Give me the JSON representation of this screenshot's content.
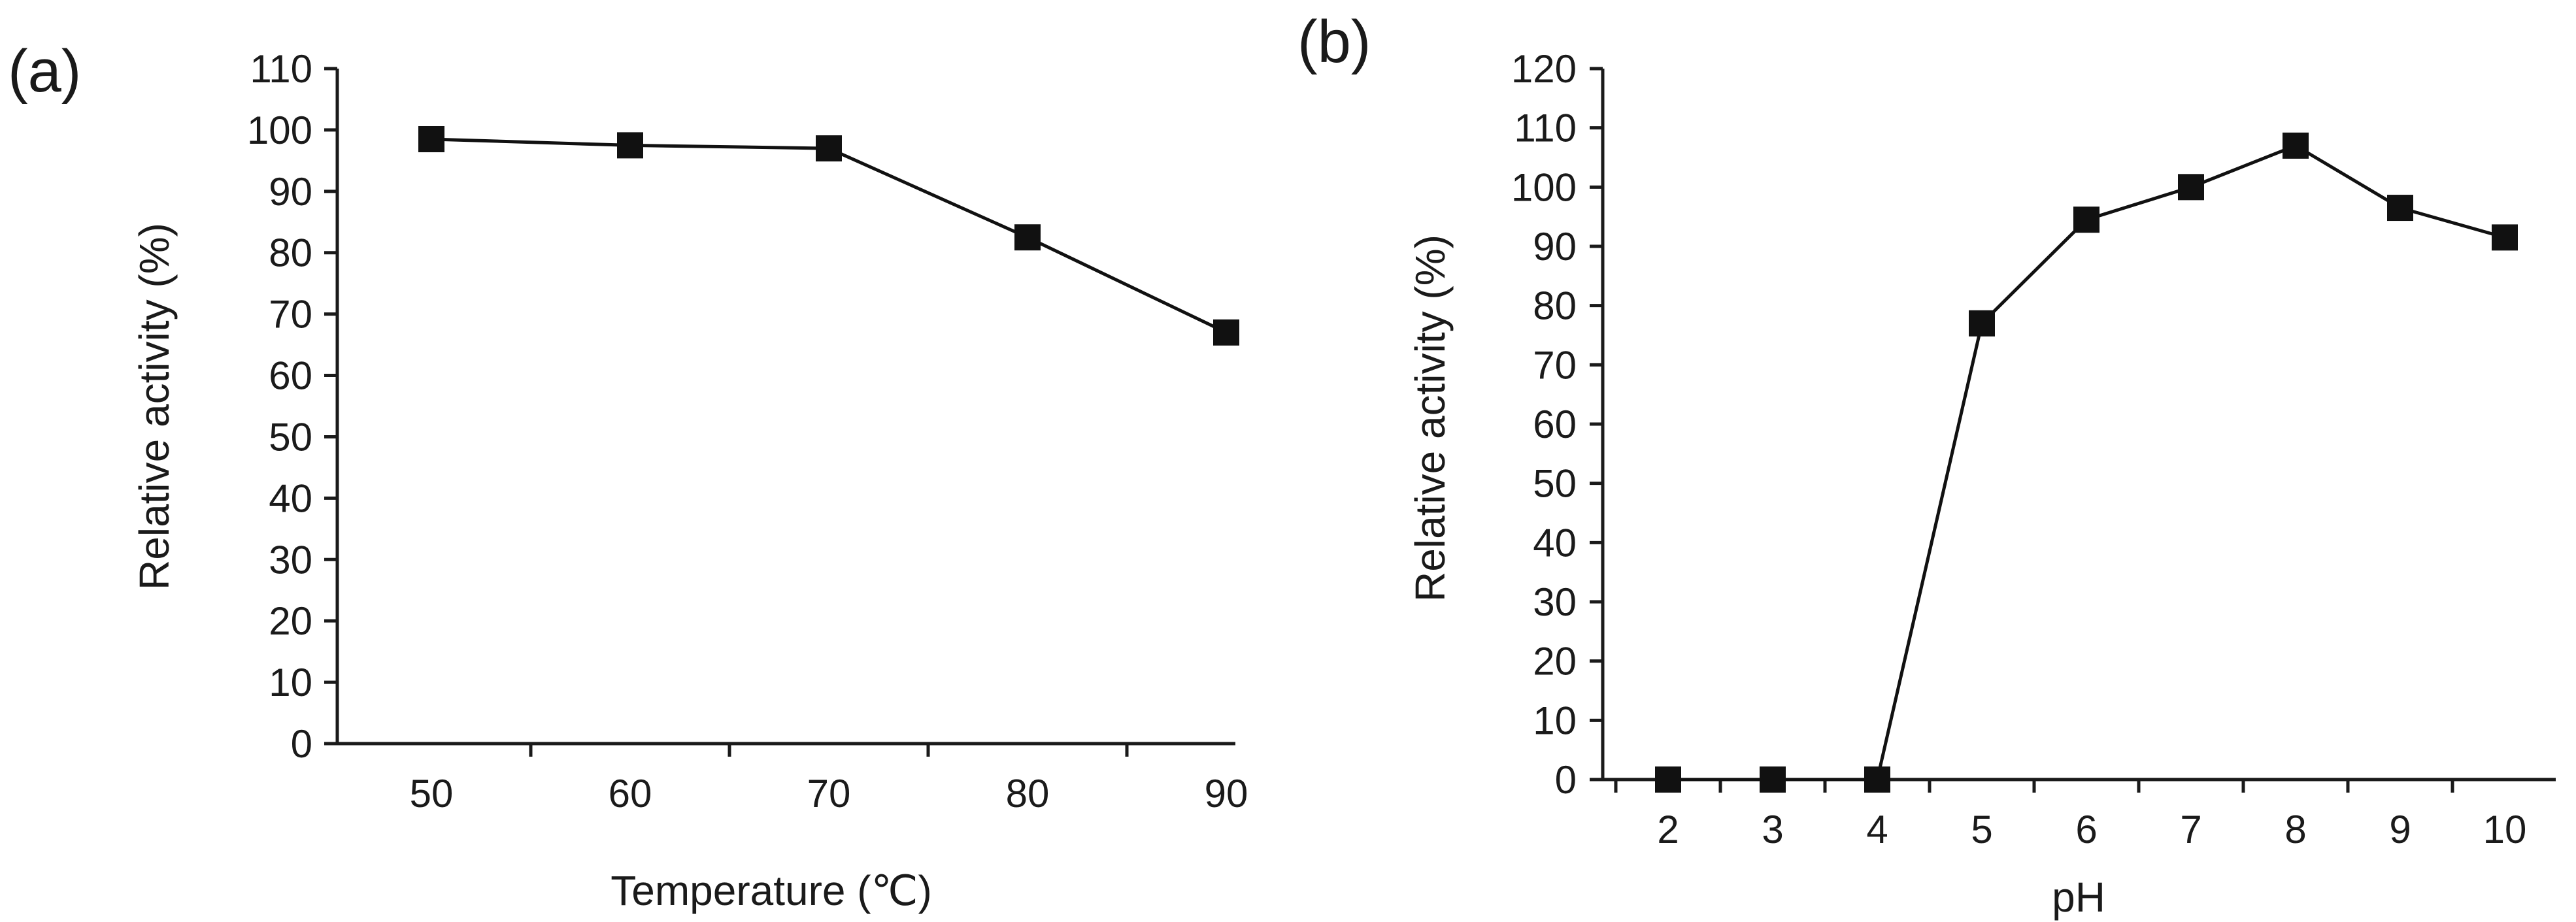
{
  "chart_data": [
    {
      "panel_label": "(a)",
      "type": "line",
      "marker": "square",
      "xlabel": "Temperature (℃)",
      "ylabel": "Relative activity (%)",
      "categories": [
        "50",
        "60",
        "70",
        "80",
        "90"
      ],
      "values": [
        98.5,
        97.5,
        97,
        82.5,
        67
      ],
      "ylim": [
        0,
        110
      ],
      "yticks": [
        "0",
        "10",
        "20",
        "30",
        "40",
        "50",
        "60",
        "70",
        "80",
        "90",
        "100",
        "110"
      ],
      "grid": false,
      "colors": {
        "line": "#111111",
        "marker": "#111111"
      }
    },
    {
      "panel_label": "(b)",
      "type": "line",
      "marker": "square",
      "xlabel": "pH",
      "ylabel": "Relative activity (%)",
      "categories": [
        "2",
        "3",
        "4",
        "5",
        "6",
        "7",
        "8",
        "9",
        "10"
      ],
      "values": [
        0,
        0,
        0,
        77,
        94.5,
        100,
        107,
        96.5,
        91.5
      ],
      "ylim": [
        0,
        120
      ],
      "yticks": [
        "0",
        "10",
        "20",
        "30",
        "40",
        "50",
        "60",
        "70",
        "80",
        "90",
        "100",
        "110",
        "120"
      ],
      "grid": false,
      "colors": {
        "line": "#111111",
        "marker": "#111111"
      }
    }
  ]
}
